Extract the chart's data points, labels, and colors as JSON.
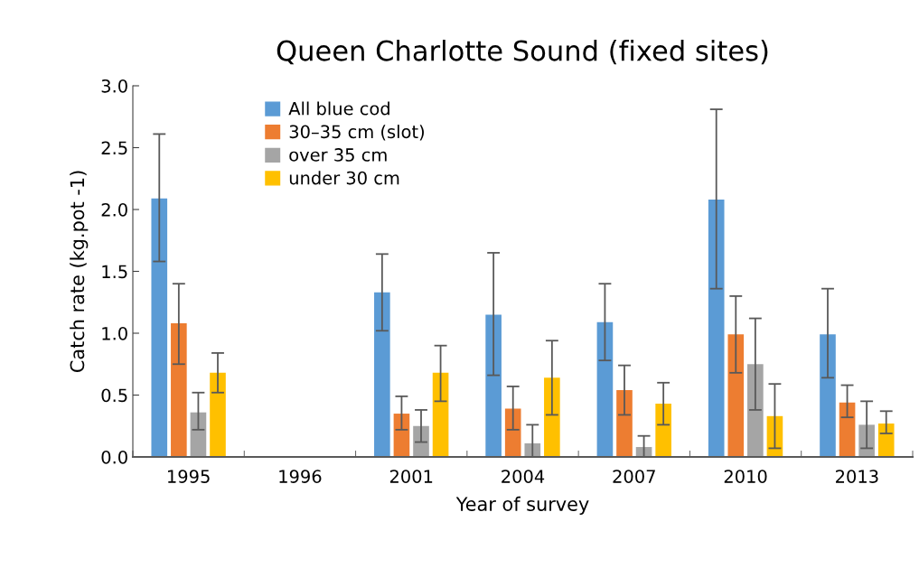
{
  "chart_data": {
    "type": "bar",
    "title": "Queen Charlotte Sound (fixed sites)",
    "xlabel": "Year of survey",
    "ylabel": "Catch rate (kg.pot -1)",
    "categories": [
      "1995",
      "1996",
      "2001",
      "2004",
      "2007",
      "2010",
      "2013"
    ],
    "series": [
      {
        "name": "All blue cod",
        "color": "#5b9bd5",
        "values": [
          2.09,
          null,
          1.33,
          1.15,
          1.09,
          2.08,
          0.99
        ],
        "errors": [
          [
            1.58,
            2.61
          ],
          null,
          [
            1.02,
            1.64
          ],
          [
            0.66,
            1.65
          ],
          [
            0.78,
            1.4
          ],
          [
            1.36,
            2.81
          ],
          [
            0.64,
            1.36
          ]
        ]
      },
      {
        "name": "30–35 cm (slot)",
        "color": "#ed7d31",
        "values": [
          1.08,
          null,
          0.35,
          0.39,
          0.54,
          0.99,
          0.44
        ],
        "errors": [
          [
            0.75,
            1.4
          ],
          null,
          [
            0.22,
            0.49
          ],
          [
            0.22,
            0.57
          ],
          [
            0.34,
            0.74
          ],
          [
            0.68,
            1.3
          ],
          [
            0.32,
            0.58
          ]
        ]
      },
      {
        "name": "over 35 cm",
        "color": "#a5a5a5",
        "values": [
          0.36,
          null,
          0.25,
          0.11,
          0.08,
          0.75,
          0.26
        ],
        "errors": [
          [
            0.22,
            0.52
          ],
          null,
          [
            0.12,
            0.38
          ],
          [
            0.0,
            0.26
          ],
          [
            0.0,
            0.17
          ],
          [
            0.38,
            1.12
          ],
          [
            0.07,
            0.45
          ]
        ]
      },
      {
        "name": "under 30 cm",
        "color": "#ffc000",
        "values": [
          0.68,
          null,
          0.68,
          0.64,
          0.43,
          0.33,
          0.27
        ],
        "errors": [
          [
            0.52,
            0.84
          ],
          null,
          [
            0.45,
            0.9
          ],
          [
            0.34,
            0.94
          ],
          [
            0.26,
            0.6
          ],
          [
            0.07,
            0.59
          ],
          [
            0.19,
            0.37
          ]
        ]
      }
    ],
    "ylim": [
      0,
      3
    ],
    "yticks": [
      {
        "value": 0,
        "label": "0.0"
      },
      {
        "value": 0.5,
        "label": "0.5"
      },
      {
        "value": 1,
        "label": "1.0"
      },
      {
        "value": 1.5,
        "label": "1.5"
      },
      {
        "value": 2,
        "label": "2.0"
      },
      {
        "value": 2.5,
        "label": "2.5"
      },
      {
        "value": 3,
        "label": "3.0"
      }
    ],
    "legend": "top left",
    "grid": false
  }
}
